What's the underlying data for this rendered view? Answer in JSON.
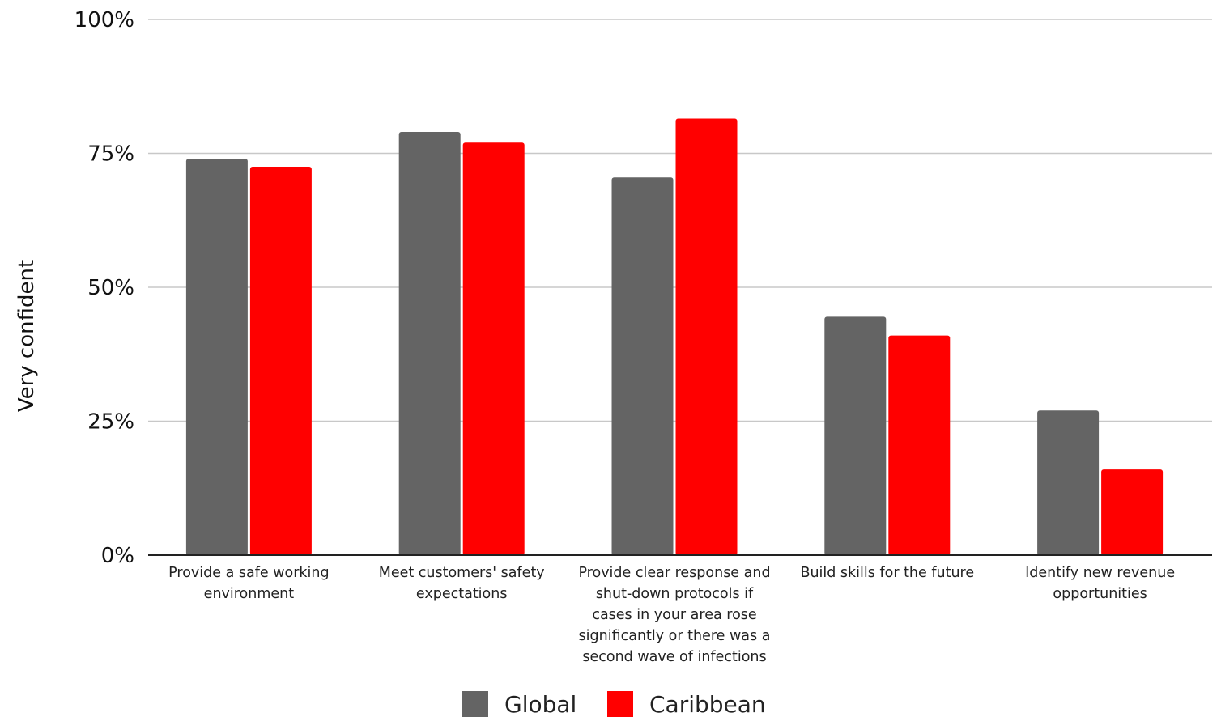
{
  "chart_data": {
    "type": "bar",
    "title": "",
    "xlabel": "",
    "ylabel": "Very confident",
    "ylim": [
      0,
      100
    ],
    "yticks": [
      0,
      25,
      50,
      75,
      100
    ],
    "ytick_labels": [
      "0%",
      "25%",
      "50%",
      "75%",
      "100%"
    ],
    "grid": true,
    "legend_position": "bottom",
    "categories": [
      [
        "Provide a safe working",
        "environment"
      ],
      [
        "Meet customers' safety",
        "expectations"
      ],
      [
        "Provide clear response and",
        "shut-down protocols if",
        "cases in your area rose",
        "significantly or there was a",
        "second wave of infections"
      ],
      [
        "Build skills for the future"
      ],
      [
        "Identify new revenue",
        "opportunities"
      ]
    ],
    "series": [
      {
        "name": "Global",
        "color": "#646464",
        "values": [
          74,
          79,
          70.5,
          44.5,
          27
        ]
      },
      {
        "name": "Caribbean",
        "color": "#ff0000",
        "values": [
          72.5,
          77,
          81.5,
          41,
          16
        ]
      }
    ]
  }
}
